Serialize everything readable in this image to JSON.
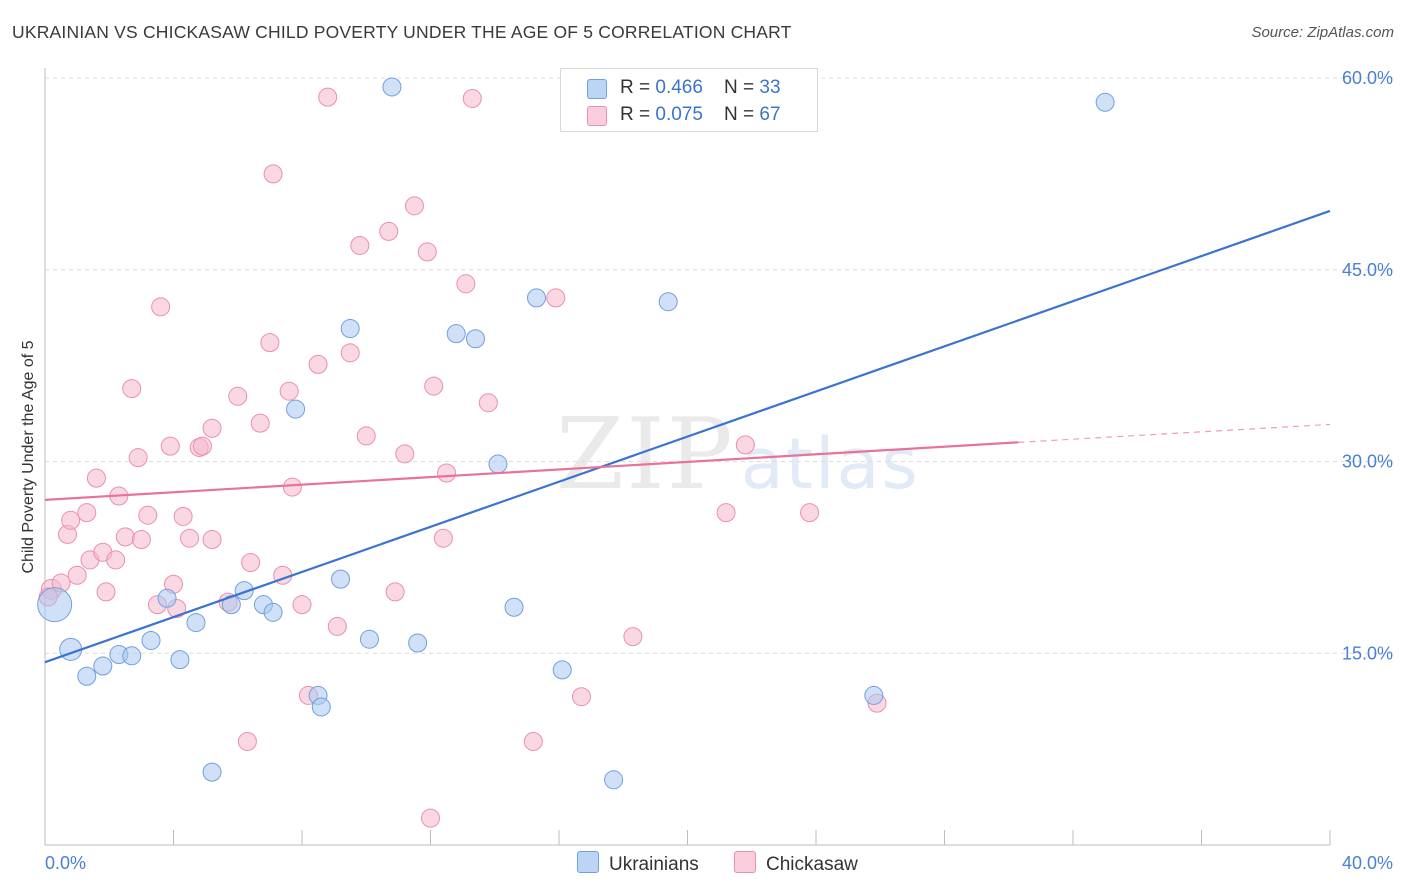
{
  "title": "UKRAINIAN VS CHICKASAW CHILD POVERTY UNDER THE AGE OF 5 CORRELATION CHART",
  "source": "Source: ZipAtlas.com",
  "watermark": {
    "zip": "ZIP",
    "atlas": "atlas"
  },
  "legend": {
    "rows": [
      {
        "r_label": "R = ",
        "r_value": "0.466",
        "n_label": "N = ",
        "n_value": "33"
      },
      {
        "r_label": "R = ",
        "r_value": "0.075",
        "n_label": "N = ",
        "n_value": "67"
      }
    ]
  },
  "bottom_legend": {
    "ukrainians": "Ukrainians",
    "chickasaw": "Chickasaw"
  },
  "colors": {
    "blue_fill": "#a9c8f0",
    "blue_stroke": "#6f9fe0",
    "blue_line": "#3a74d0",
    "pink_fill": "#f6b8cc",
    "pink_stroke": "#ec8fac",
    "pink_line": "#e8729a",
    "grid": "#dcdcdc",
    "tick_text": "#4a7fd6"
  },
  "chart_data": {
    "type": "scatter",
    "title": "UKRAINIAN VS CHICKASAW CHILD POVERTY UNDER THE AGE OF 5 CORRELATION CHART",
    "xlabel": "",
    "ylabel": "Child Poverty Under the Age of 5",
    "xlim": [
      0,
      40
    ],
    "ylim": [
      0,
      60
    ],
    "x_tick_labels": [
      "0.0%",
      "40.0%"
    ],
    "y_ticks": [
      15,
      30,
      45,
      60
    ],
    "y_tick_labels": [
      "15.0%",
      "30.0%",
      "45.0%",
      "60.0%"
    ],
    "grid": true,
    "series": [
      {
        "name": "Ukrainians",
        "r": 0.466,
        "n": 33,
        "trend": {
          "x0": 0,
          "y0": 14.3,
          "x1": 40,
          "y1": 49.6
        },
        "points": [
          [
            0.3,
            18.8
          ],
          [
            0.8,
            15.3
          ],
          [
            1.3,
            13.2
          ],
          [
            1.8,
            14.0
          ],
          [
            2.3,
            14.9
          ],
          [
            2.7,
            14.8
          ],
          [
            3.3,
            16.0
          ],
          [
            3.8,
            19.3
          ],
          [
            4.2,
            14.5
          ],
          [
            4.7,
            17.4
          ],
          [
            5.2,
            5.7
          ],
          [
            5.8,
            18.8
          ],
          [
            6.2,
            19.9
          ],
          [
            6.8,
            18.8
          ],
          [
            7.1,
            18.2
          ],
          [
            7.8,
            34.1
          ],
          [
            8.5,
            11.7
          ],
          [
            8.6,
            10.8
          ],
          [
            9.2,
            20.8
          ],
          [
            9.5,
            40.4
          ],
          [
            10.1,
            16.1
          ],
          [
            10.8,
            59.3
          ],
          [
            11.6,
            15.8
          ],
          [
            12.8,
            40.0
          ],
          [
            13.4,
            39.6
          ],
          [
            14.1,
            29.8
          ],
          [
            14.6,
            18.6
          ],
          [
            15.3,
            42.8
          ],
          [
            16.1,
            13.7
          ],
          [
            17.7,
            5.1
          ],
          [
            19.4,
            42.5
          ],
          [
            25.8,
            11.7
          ],
          [
            33.0,
            58.1
          ]
        ]
      },
      {
        "name": "Chickasaw",
        "r": 0.075,
        "n": 67,
        "trend_solid": {
          "x0": 0,
          "y0": 27.0,
          "x1": 30.3,
          "y1": 31.5
        },
        "trend_dashed": {
          "x0": 30.3,
          "y0": 31.5,
          "x1": 40,
          "y1": 32.9
        },
        "points": [
          [
            0.2,
            20.0
          ],
          [
            0.5,
            20.5
          ],
          [
            0.7,
            24.3
          ],
          [
            0.8,
            25.4
          ],
          [
            1.0,
            21.1
          ],
          [
            1.3,
            26.0
          ],
          [
            1.4,
            22.3
          ],
          [
            1.6,
            28.7
          ],
          [
            1.8,
            22.9
          ],
          [
            1.9,
            19.8
          ],
          [
            2.2,
            22.3
          ],
          [
            2.3,
            27.3
          ],
          [
            2.5,
            24.1
          ],
          [
            2.7,
            35.7
          ],
          [
            2.9,
            30.3
          ],
          [
            3.0,
            23.9
          ],
          [
            3.2,
            25.8
          ],
          [
            3.5,
            18.8
          ],
          [
            3.6,
            42.1
          ],
          [
            3.9,
            31.2
          ],
          [
            4.0,
            20.4
          ],
          [
            4.1,
            18.5
          ],
          [
            4.3,
            25.7
          ],
          [
            4.5,
            24.0
          ],
          [
            4.8,
            31.1
          ],
          [
            4.9,
            31.2
          ],
          [
            5.2,
            23.9
          ],
          [
            5.2,
            32.6
          ],
          [
            5.7,
            19.0
          ],
          [
            6.0,
            35.1
          ],
          [
            6.3,
            8.1
          ],
          [
            6.4,
            22.1
          ],
          [
            6.7,
            33.0
          ],
          [
            7.0,
            39.3
          ],
          [
            7.1,
            52.5
          ],
          [
            7.4,
            21.1
          ],
          [
            7.6,
            35.5
          ],
          [
            7.7,
            28.0
          ],
          [
            8.0,
            18.8
          ],
          [
            8.2,
            11.7
          ],
          [
            8.5,
            37.6
          ],
          [
            8.8,
            58.5
          ],
          [
            9.1,
            17.1
          ],
          [
            9.5,
            38.5
          ],
          [
            9.8,
            46.9
          ],
          [
            10.0,
            32.0
          ],
          [
            10.7,
            48.0
          ],
          [
            10.9,
            19.8
          ],
          [
            11.2,
            30.6
          ],
          [
            11.5,
            50.0
          ],
          [
            11.9,
            46.4
          ],
          [
            12.0,
            2.1
          ],
          [
            12.1,
            35.9
          ],
          [
            12.4,
            24.0
          ],
          [
            12.5,
            29.1
          ],
          [
            13.1,
            43.9
          ],
          [
            13.3,
            58.4
          ],
          [
            13.8,
            34.6
          ],
          [
            15.2,
            8.1
          ],
          [
            15.9,
            42.8
          ],
          [
            16.7,
            11.6
          ],
          [
            18.3,
            16.3
          ],
          [
            21.2,
            26.0
          ],
          [
            21.8,
            31.3
          ],
          [
            23.8,
            26.0
          ],
          [
            25.9,
            11.1
          ],
          [
            0.1,
            19.4
          ]
        ]
      }
    ]
  }
}
